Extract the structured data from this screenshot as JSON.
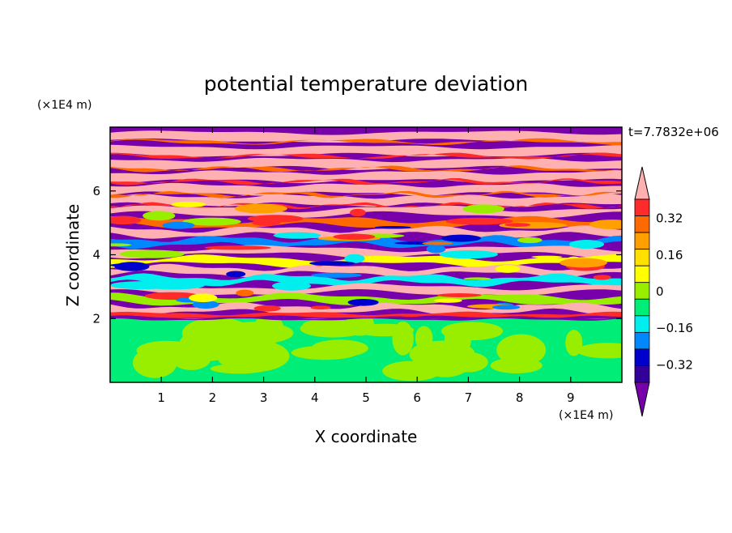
{
  "chart_data": {
    "type": "heatmap",
    "title": "potential temperature deviation",
    "xlabel": "X coordinate",
    "ylabel": "Z coordinate",
    "x_unit": "(×1E4 m)",
    "y_unit": "(×1E4 m)",
    "time_label": "t=7.7832e+06",
    "xlim": [
      0,
      10
    ],
    "ylim": [
      0,
      8
    ],
    "x_ticks": [
      "1",
      "2",
      "3",
      "4",
      "5",
      "6",
      "7",
      "8",
      "9"
    ],
    "y_ticks": [
      "2",
      "4",
      "6"
    ],
    "colorbar": {
      "levels": [
        -0.48,
        -0.4,
        -0.32,
        -0.24,
        -0.16,
        -0.08,
        0,
        0.08,
        0.16,
        0.24,
        0.32,
        0.4,
        0.48
      ],
      "labels": [
        "0.32",
        "0.16",
        "0",
        "−0.16",
        "−0.32"
      ],
      "label_values": [
        0.32,
        0.16,
        0,
        -0.16,
        -0.32
      ],
      "colors_high_to_low": [
        "#ffb0b0",
        "#ff2a2a",
        "#ff6a00",
        "#ffa000",
        "#ffe000",
        "#ffff00",
        "#99ee00",
        "#00ee77",
        "#00eeee",
        "#0088ff",
        "#0000cc",
        "#330099",
        "#7700aa"
      ]
    },
    "bands": [
      {
        "z_from": 0.0,
        "z_to": 1.0,
        "desc": "mix",
        "colors": [
          "#00ee77",
          "#99ee00"
        ]
      },
      {
        "z_from": 1.0,
        "z_to": 2.0,
        "desc": "mix",
        "colors": [
          "#00ee77",
          "#99ee00"
        ]
      },
      {
        "z_from": 2.0,
        "z_to": 2.4,
        "desc": "layers",
        "colors": [
          "#7700aa",
          "#ffb0b0",
          "#ff2a2a"
        ]
      },
      {
        "z_from": 2.4,
        "z_to": 4.2,
        "desc": "turbulent",
        "colors": [
          "#7700aa",
          "#ffb0b0",
          "#0088ff",
          "#00eeee",
          "#ffff00",
          "#99ee00",
          "#ff6a00"
        ]
      },
      {
        "z_from": 4.2,
        "z_to": 5.6,
        "desc": "layers",
        "colors": [
          "#7700aa",
          "#ffb0b0",
          "#ff6a00",
          "#0088ff"
        ]
      },
      {
        "z_from": 5.6,
        "z_to": 8.0,
        "desc": "stratified",
        "colors": [
          "#ffb0b0",
          "#7700aa"
        ]
      }
    ]
  }
}
